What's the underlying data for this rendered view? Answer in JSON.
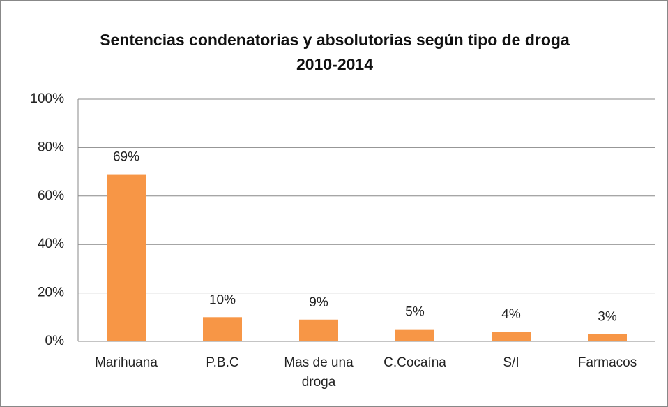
{
  "chart_data": {
    "type": "bar",
    "title": "Sentencias condenatorias y absolutorias según tipo de droga 2010-2014",
    "categories": [
      "Marihuana",
      "P.B.C",
      "Mas de una droga",
      "C.Cocaína",
      "S/I",
      "Farmacos"
    ],
    "values": [
      69,
      10,
      9,
      5,
      4,
      3
    ],
    "value_labels": [
      "69%",
      "10%",
      "9%",
      "5%",
      "4%",
      "3%"
    ],
    "color": "#f79646",
    "ylim": [
      0,
      100
    ],
    "yticks": [
      {
        "value": 0,
        "label": "0%"
      },
      {
        "value": 20,
        "label": "20%"
      },
      {
        "value": 40,
        "label": "40%"
      },
      {
        "value": 60,
        "label": "60%"
      },
      {
        "value": 80,
        "label": "80%"
      },
      {
        "value": 100,
        "label": "100%"
      }
    ],
    "grid": true
  }
}
